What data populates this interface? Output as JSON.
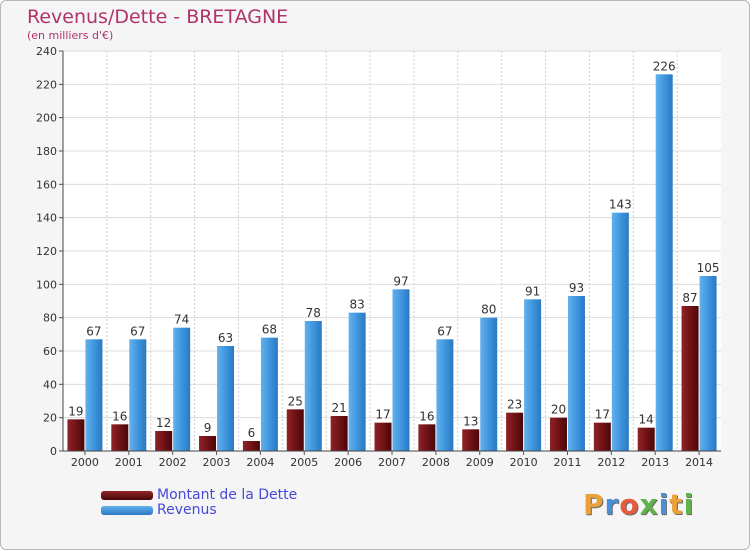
{
  "title": "Revenus/Dette - BRETAGNE",
  "subtitle": "(en milliers d'€)",
  "brand": "Proxiti",
  "colors": {
    "title": "#b0336b",
    "dette": "#6e1114",
    "revenus": "#3c93dc",
    "legend_text": "#4848d8"
  },
  "chart_data": {
    "type": "bar",
    "categories": [
      "2000",
      "2001",
      "2002",
      "2003",
      "2004",
      "2005",
      "2006",
      "2007",
      "2008",
      "2009",
      "2010",
      "2011",
      "2012",
      "2013",
      "2014"
    ],
    "series": [
      {
        "name": "Montant de la Dette",
        "values": [
          19,
          16,
          12,
          9,
          6,
          25,
          21,
          17,
          16,
          13,
          23,
          20,
          17,
          14,
          87
        ]
      },
      {
        "name": "Revenus",
        "values": [
          67,
          67,
          74,
          63,
          68,
          78,
          83,
          97,
          67,
          80,
          91,
          93,
          143,
          226,
          105
        ]
      }
    ],
    "title": "Revenus/Dette - BRETAGNE",
    "ylabel": "",
    "xlabel": "",
    "ylim": [
      0,
      240
    ],
    "yticks": [
      0,
      20,
      40,
      60,
      80,
      100,
      120,
      140,
      160,
      180,
      200,
      220,
      240
    ],
    "grid": true,
    "legend": "bottom-left",
    "data_labels": true
  }
}
